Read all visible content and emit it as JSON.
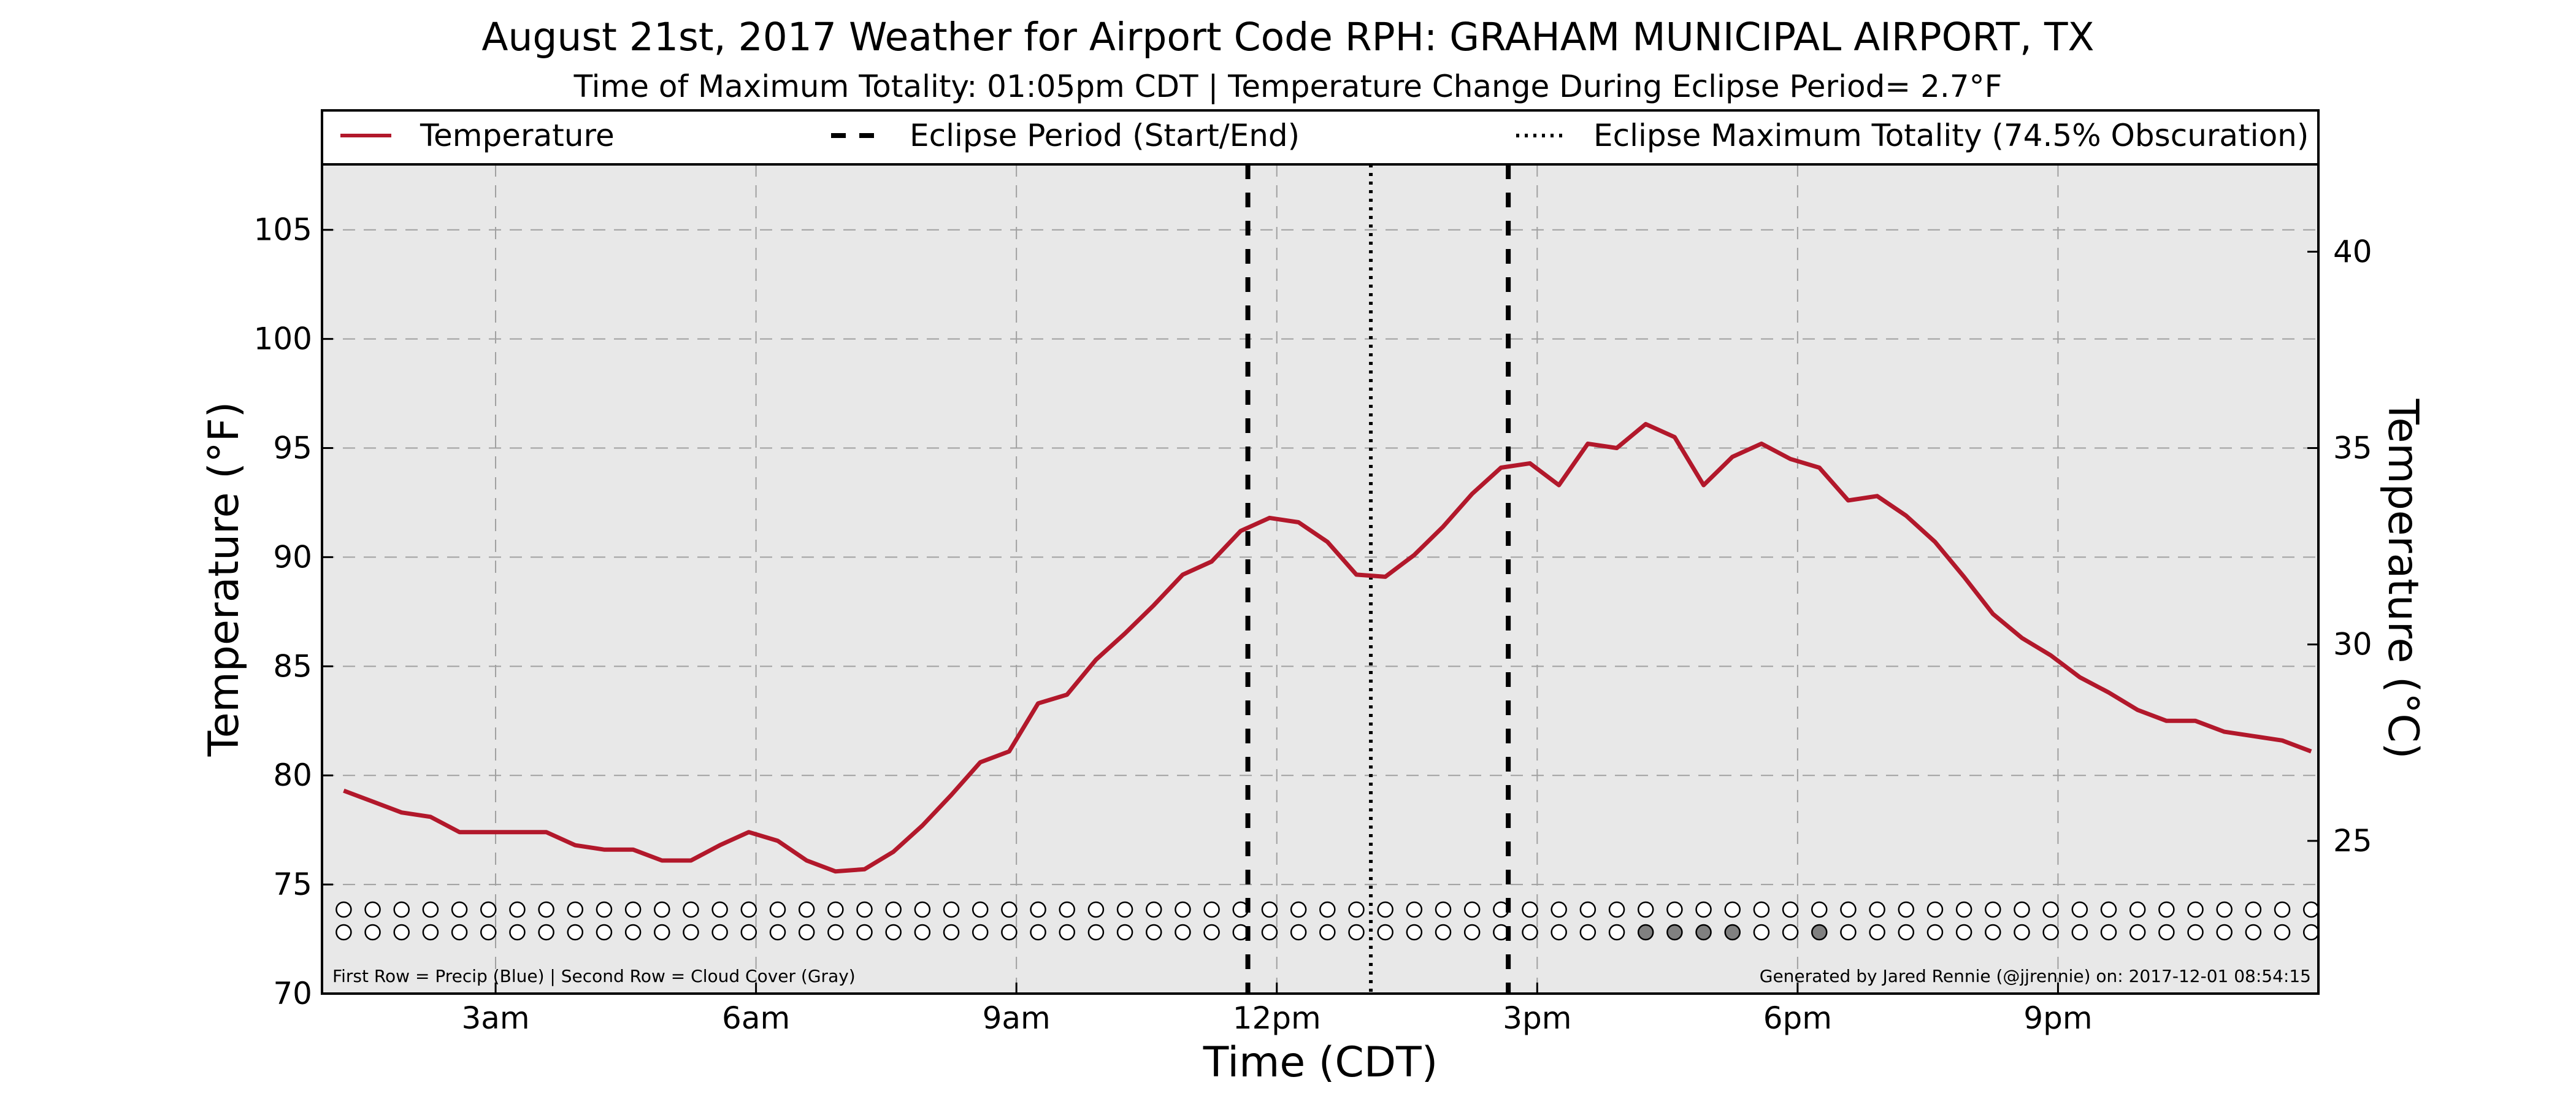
{
  "colors": {
    "temperature_line": "#b2182b",
    "plot_background": "#e8e8e8",
    "grid": "#a0a0a0",
    "eclipse_lines": "#000000",
    "cloud_cover_filled": "#808080",
    "cloud_cover_empty": "#ffffff"
  },
  "chart_data": {
    "type": "line",
    "title": "August 21st, 2017 Weather for Airport Code RPH: GRAHAM MUNICIPAL AIRPORT, TX",
    "subtitle": "Time of Maximum Totality: 01:05pm CDT | Temperature Change During Eclipse Period= 2.7°F",
    "xlabel": "Time (CDT)",
    "ylabel": "Temperature (°F)",
    "ylabel_right": "Temperature (°C)",
    "xlim": [
      "01:00",
      "24:00"
    ],
    "ylim": [
      70,
      108
    ],
    "y_ticks": [
      70,
      75,
      80,
      85,
      90,
      95,
      100,
      105
    ],
    "y_ticks_right": [
      25,
      30,
      35,
      40
    ],
    "x_ticks": [
      {
        "time": "03:00",
        "label": "3am"
      },
      {
        "time": "06:00",
        "label": "6am"
      },
      {
        "time": "09:00",
        "label": "9am"
      },
      {
        "time": "12:00",
        "label": "12pm"
      },
      {
        "time": "15:00",
        "label": "3pm"
      },
      {
        "time": "18:00",
        "label": "6pm"
      },
      {
        "time": "21:00",
        "label": "9pm"
      }
    ],
    "grid": true,
    "legend": {
      "placement": "top",
      "entries": [
        {
          "label": "Temperature",
          "style": "solid"
        },
        {
          "label": "Eclipse Period (Start/End)",
          "style": "dashed"
        },
        {
          "label": "Eclipse Maximum Totality (74.5% Obscuration)",
          "style": "dotted"
        }
      ]
    },
    "series": [
      {
        "name": "Temperature",
        "x": [
          "01:15",
          "01:35",
          "01:55",
          "02:15",
          "02:35",
          "02:55",
          "03:15",
          "03:35",
          "03:55",
          "04:15",
          "04:35",
          "04:55",
          "05:15",
          "05:35",
          "05:55",
          "06:15",
          "06:35",
          "06:55",
          "07:15",
          "07:35",
          "07:55",
          "08:15",
          "08:35",
          "08:55",
          "09:15",
          "09:35",
          "09:55",
          "10:15",
          "10:35",
          "10:55",
          "11:15",
          "11:35",
          "11:55",
          "12:15",
          "12:35",
          "12:55",
          "13:15",
          "13:35",
          "13:55",
          "14:15",
          "14:35",
          "14:55",
          "15:15",
          "15:35",
          "15:55",
          "16:15",
          "16:35",
          "16:55",
          "17:15",
          "17:35",
          "17:55",
          "18:15",
          "18:35",
          "18:55",
          "19:15",
          "19:35",
          "19:55",
          "20:15",
          "20:35",
          "20:55",
          "21:15",
          "21:35",
          "21:55",
          "22:15",
          "22:35",
          "22:55",
          "23:15",
          "23:35",
          "23:55"
        ],
        "y": [
          79.3,
          78.8,
          78.3,
          78.1,
          77.4,
          77.4,
          77.4,
          77.4,
          76.8,
          76.6,
          76.6,
          76.1,
          76.1,
          76.8,
          77.4,
          77.0,
          76.1,
          75.6,
          75.7,
          76.5,
          77.7,
          79.1,
          80.6,
          81.1,
          83.3,
          83.7,
          85.3,
          86.5,
          87.8,
          89.2,
          89.8,
          91.2,
          91.8,
          91.6,
          90.7,
          89.2,
          89.1,
          90.1,
          91.4,
          92.9,
          94.1,
          94.3,
          93.3,
          95.2,
          95.0,
          96.1,
          95.5,
          93.3,
          94.6,
          95.2,
          94.5,
          94.1,
          92.6,
          92.8,
          91.9,
          90.7,
          89.1,
          87.4,
          86.3,
          85.5,
          84.5,
          83.8,
          83.0,
          82.5,
          82.5,
          82.0,
          81.8,
          81.6,
          81.1
        ]
      }
    ],
    "eclipse": {
      "start": "11:40",
      "max": "13:05",
      "end": "14:40"
    },
    "observation_times": [
      "01:15",
      "01:35",
      "01:55",
      "02:15",
      "02:35",
      "02:55",
      "03:15",
      "03:35",
      "03:55",
      "04:15",
      "04:35",
      "04:55",
      "05:15",
      "05:35",
      "05:55",
      "06:15",
      "06:35",
      "06:55",
      "07:15",
      "07:35",
      "07:55",
      "08:15",
      "08:35",
      "08:55",
      "09:15",
      "09:35",
      "09:55",
      "10:15",
      "10:35",
      "10:55",
      "11:15",
      "11:35",
      "11:55",
      "12:15",
      "12:35",
      "12:55",
      "13:15",
      "13:35",
      "13:55",
      "14:15",
      "14:35",
      "14:55",
      "15:15",
      "15:35",
      "15:55",
      "16:15",
      "16:35",
      "16:55",
      "17:15",
      "17:35",
      "17:55",
      "18:15",
      "18:35",
      "18:55",
      "19:15",
      "19:35",
      "19:55",
      "20:15",
      "20:35",
      "20:55",
      "21:15",
      "21:35",
      "21:55",
      "22:15",
      "22:35",
      "22:55",
      "23:15",
      "23:35",
      "23:55"
    ],
    "precip_row": [
      0,
      0,
      0,
      0,
      0,
      0,
      0,
      0,
      0,
      0,
      0,
      0,
      0,
      0,
      0,
      0,
      0,
      0,
      0,
      0,
      0,
      0,
      0,
      0,
      0,
      0,
      0,
      0,
      0,
      0,
      0,
      0,
      0,
      0,
      0,
      0,
      0,
      0,
      0,
      0,
      0,
      0,
      0,
      0,
      0,
      0,
      0,
      0,
      0,
      0,
      0,
      0,
      0,
      0,
      0,
      0,
      0,
      0,
      0,
      0,
      0,
      0,
      0,
      0,
      0,
      0,
      0,
      0,
      0
    ],
    "cloud_row": [
      0,
      0,
      0,
      0,
      0,
      0,
      0,
      0,
      0,
      0,
      0,
      0,
      0,
      0,
      0,
      0,
      0,
      0,
      0,
      0,
      0,
      0,
      0,
      0,
      0,
      0,
      0,
      0,
      0,
      0,
      0,
      0,
      0,
      0,
      0,
      0,
      0,
      0,
      0,
      0,
      0,
      0,
      0,
      0,
      0,
      1,
      1,
      1,
      1,
      0,
      0,
      1,
      0,
      0,
      0,
      0,
      0,
      0,
      0,
      0,
      0,
      0,
      0,
      0,
      0,
      0,
      0,
      0,
      0
    ],
    "footer_left": "First Row = Precip (Blue) | Second Row = Cloud Cover (Gray)",
    "footer_right": "Generated by Jared Rennie (@jjrennie) on: 2017-12-01 08:54:15"
  }
}
